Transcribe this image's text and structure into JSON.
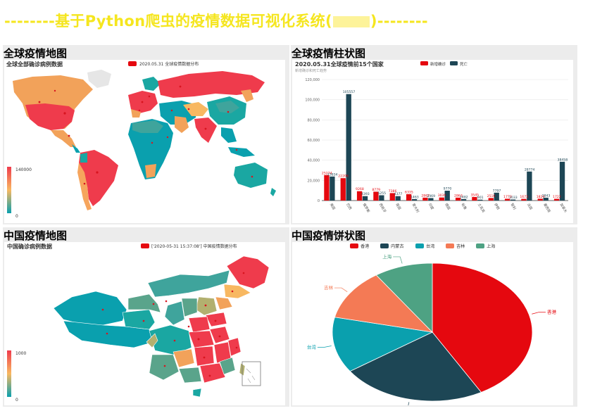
{
  "header": {
    "title_left": "--------基于Python爬虫的疫情数据可视化系统(",
    "title_right": ")--------"
  },
  "panels": {
    "world_map": {
      "panel_title": "全球疫情地图",
      "chart_title": "全球全部确诊病例数据",
      "legend": "2020.05.31 全球疫情数据分布",
      "scale_max": "140000",
      "scale_min": "0"
    },
    "world_bar": {
      "panel_title": "全球疫情柱状图",
      "chart_title": "2020.05.31全球疫情前15个国家",
      "subtitle": "新增确诊和死亡趋势",
      "legend_confirmed": "新增确诊",
      "legend_dead": "死亡"
    },
    "china_map": {
      "panel_title": "中国疫情地图",
      "chart_title": "中国确诊病例数据",
      "legend": "['2020-05-31 15:37:08'] 中国疫情数据分布",
      "scale_max": "1000",
      "scale_min": "0"
    },
    "china_pie": {
      "panel_title": "中国疫情饼状图"
    }
  },
  "colors": {
    "title_yellow": "#f5e61f",
    "red": "#e5080f",
    "dark_teal": "#1d4655",
    "teal": "#0aa0ae",
    "orange": "#f47a55",
    "green": "#4ea283"
  },
  "chart_data": [
    {
      "type": "bar",
      "title": "2020.05.31全球疫情前15个国家",
      "categories": [
        "美国",
        "巴西",
        "俄罗斯",
        "西班牙",
        "英国",
        "意大利",
        "印度",
        "德国",
        "秘鲁",
        "土耳其",
        "伊朗",
        "智利",
        "法国",
        "墨西哥",
        "加拿大"
      ],
      "series": [
        {
          "name": "新增确诊",
          "values": [
            25274,
            22206,
            9268,
            8779,
            7386,
            6335,
            2867,
            3039,
            2863,
            3545,
            2516,
            1773,
            1673,
            1829,
            1722
          ]
        },
        {
          "name": "死亡",
          "values": [
            23834,
            105557,
            4393,
            5255,
            4377,
            1463,
            2469,
            9770,
            1482,
            901,
            7797,
            1033,
            28774,
            2843,
            38458
          ]
        }
      ],
      "ylim": [
        0,
        120000
      ],
      "yticks": [
        "0",
        "20,000",
        "40,000",
        "60,000",
        "80,000",
        "100,000",
        "120,000"
      ]
    },
    {
      "type": "pie",
      "categories": [
        "香港",
        "内蒙古",
        "台湾",
        "吉林",
        "上海"
      ],
      "values": [
        1082,
        608,
        338,
        311,
        245
      ],
      "colors": [
        "#e5080f",
        "#1d4655",
        "#0aa0ae",
        "#f47a55",
        "#4ea283"
      ]
    }
  ]
}
